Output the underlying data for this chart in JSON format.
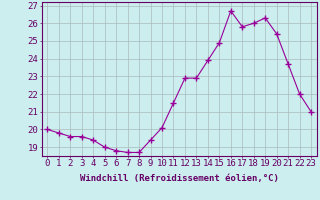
{
  "x": [
    0,
    1,
    2,
    3,
    4,
    5,
    6,
    7,
    8,
    9,
    10,
    11,
    12,
    13,
    14,
    15,
    16,
    17,
    18,
    19,
    20,
    21,
    22,
    23
  ],
  "y": [
    20.0,
    19.8,
    19.6,
    19.6,
    19.4,
    19.0,
    18.8,
    18.7,
    18.7,
    19.4,
    20.1,
    21.5,
    22.9,
    22.9,
    23.9,
    24.9,
    26.7,
    25.8,
    26.0,
    26.3,
    25.4,
    23.7,
    22.0,
    21.0
  ],
  "line_color": "#990099",
  "marker": "+",
  "marker_size": 4,
  "bg_color": "#cceeee",
  "grid_color": "#aabbbb",
  "xlabel": "Windchill (Refroidissement éolien,°C)",
  "ylim": [
    18.5,
    27.2
  ],
  "yticks": [
    19,
    20,
    21,
    22,
    23,
    24,
    25,
    26,
    27
  ],
  "xtick_labels": [
    "0",
    "1",
    "2",
    "3",
    "4",
    "5",
    "6",
    "7",
    "8",
    "9",
    "10",
    "11",
    "12",
    "13",
    "14",
    "15",
    "16",
    "17",
    "18",
    "19",
    "20",
    "21",
    "22",
    "23"
  ],
  "title_color": "#660066",
  "axis_color": "#660066",
  "tick_color": "#660066",
  "font_size": 6.5
}
